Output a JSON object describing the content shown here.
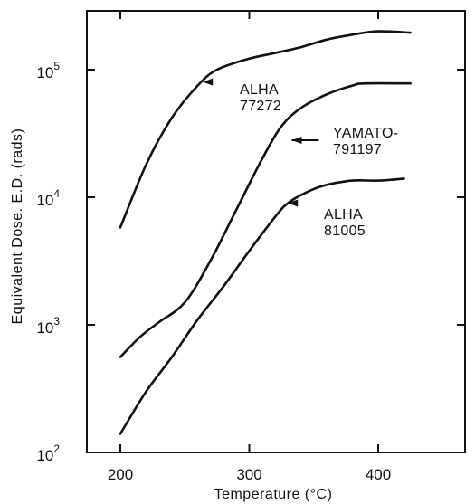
{
  "chart_data": {
    "type": "line",
    "title": "",
    "xlabel": "Temperature (°C)",
    "ylabel": "Equivalent Dose. E.D. (rads)",
    "xlim": [
      180,
      430
    ],
    "ylim": [
      100,
      250000
    ],
    "y_scale": "log",
    "grid": false,
    "legend": "none",
    "x_ticks": [
      {
        "value": 200,
        "label": "200"
      },
      {
        "value": 300,
        "label": "300"
      },
      {
        "value": 400,
        "label": "400"
      }
    ],
    "y_ticks": [
      {
        "value": 100,
        "base": "10",
        "exp": "2"
      },
      {
        "value": 1000,
        "base": "10",
        "exp": "3"
      },
      {
        "value": 10000,
        "base": "10",
        "exp": "4"
      },
      {
        "value": 100000,
        "base": "10",
        "exp": "5"
      }
    ],
    "series": [
      {
        "name": "ALHA 77272",
        "label_lines": [
          "ALHA",
          "77272"
        ],
        "points": [
          [
            200,
            5800
          ],
          [
            220,
            18000
          ],
          [
            240,
            42000
          ],
          [
            260,
            75000
          ],
          [
            275,
            100000
          ],
          [
            300,
            122000
          ],
          [
            320,
            135000
          ],
          [
            340,
            150000
          ],
          [
            360,
            172000
          ],
          [
            380,
            188000
          ],
          [
            400,
            200000
          ],
          [
            425,
            195000
          ]
        ]
      },
      {
        "name": "YAMATO-791197",
        "label_lines": [
          "YAMATO-",
          "791197"
        ],
        "points": [
          [
            200,
            560
          ],
          [
            215,
            800
          ],
          [
            230,
            1050
          ],
          [
            250,
            1500
          ],
          [
            270,
            3200
          ],
          [
            290,
            8000
          ],
          [
            310,
            20000
          ],
          [
            325,
            36000
          ],
          [
            340,
            50000
          ],
          [
            360,
            64000
          ],
          [
            380,
            75000
          ],
          [
            390,
            78000
          ],
          [
            425,
            78000
          ]
        ]
      },
      {
        "name": "ALHA 81005",
        "label_lines": [
          "ALHA",
          "81005"
        ],
        "points": [
          [
            200,
            140
          ],
          [
            220,
            300
          ],
          [
            240,
            560
          ],
          [
            260,
            1100
          ],
          [
            280,
            2000
          ],
          [
            300,
            3800
          ],
          [
            320,
            7000
          ],
          [
            330,
            9000
          ],
          [
            345,
            11000
          ],
          [
            360,
            12500
          ],
          [
            380,
            13500
          ],
          [
            400,
            13500
          ],
          [
            420,
            14000
          ]
        ]
      }
    ],
    "annotations": [
      {
        "series": 0,
        "arrow_at": [
          264,
          80000
        ]
      },
      {
        "series": 1,
        "arrow_at": [
          333,
          28000
        ]
      },
      {
        "series": 2,
        "arrow_at": [
          330,
          9000
        ]
      }
    ]
  }
}
